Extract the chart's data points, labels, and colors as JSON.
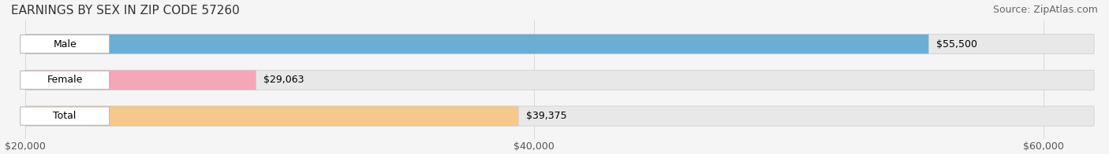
{
  "title": "EARNINGS BY SEX IN ZIP CODE 57260",
  "source": "Source: ZipAtlas.com",
  "categories": [
    "Male",
    "Female",
    "Total"
  ],
  "values": [
    55500,
    29063,
    39375
  ],
  "bar_colors": [
    "#6aaed6",
    "#f4a7b9",
    "#f5c98a"
  ],
  "bar_edge_colors": [
    "#a8cce8",
    "#f9d0dc",
    "#fbe3be"
  ],
  "label_colors": [
    "white",
    "black",
    "black"
  ],
  "value_labels": [
    "$55,500",
    "$29,063",
    "$39,375"
  ],
  "xlim": [
    20000,
    62000
  ],
  "xticks": [
    20000,
    40000,
    60000
  ],
  "xticklabels": [
    "$20,000",
    "$40,000",
    "$60,000"
  ],
  "background_color": "#f5f5f5",
  "bar_background_color": "#e8e8e8",
  "title_fontsize": 11,
  "source_fontsize": 9,
  "tick_fontsize": 9,
  "bar_label_fontsize": 9,
  "bar_height": 0.55
}
